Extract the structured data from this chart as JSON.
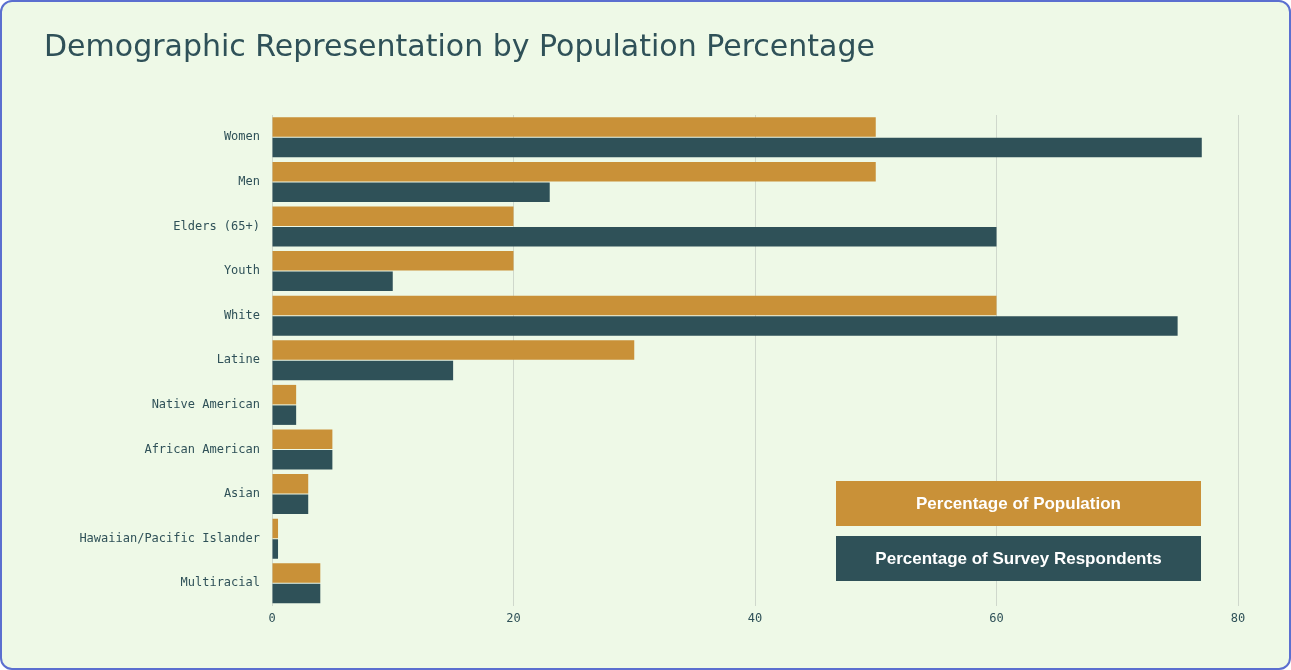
{
  "chart_data": {
    "type": "bar",
    "orientation": "horizontal",
    "title": "Demographic Representation by Population Percentage",
    "categories": [
      "Women",
      "Men",
      "Elders (65+)",
      "Youth",
      "White",
      "Latine",
      "Native American",
      "African American",
      "Asian",
      "Hawaiian/Pacific Islander",
      "Multiracial"
    ],
    "series": [
      {
        "name": "Percentage of Population",
        "color": "#c99138",
        "values": [
          50,
          50,
          20,
          20,
          60,
          30,
          2,
          5,
          3,
          0.5,
          4
        ]
      },
      {
        "name": "Percentage of Survey Respondents",
        "color": "#2f5158",
        "values": [
          77,
          23,
          60,
          10,
          75,
          15,
          2,
          5,
          3,
          0.5,
          4
        ]
      }
    ],
    "xlim": [
      0,
      80
    ],
    "xticks": [
      0,
      20,
      40,
      60,
      80
    ],
    "grid": "x",
    "legend": "bottom right"
  }
}
